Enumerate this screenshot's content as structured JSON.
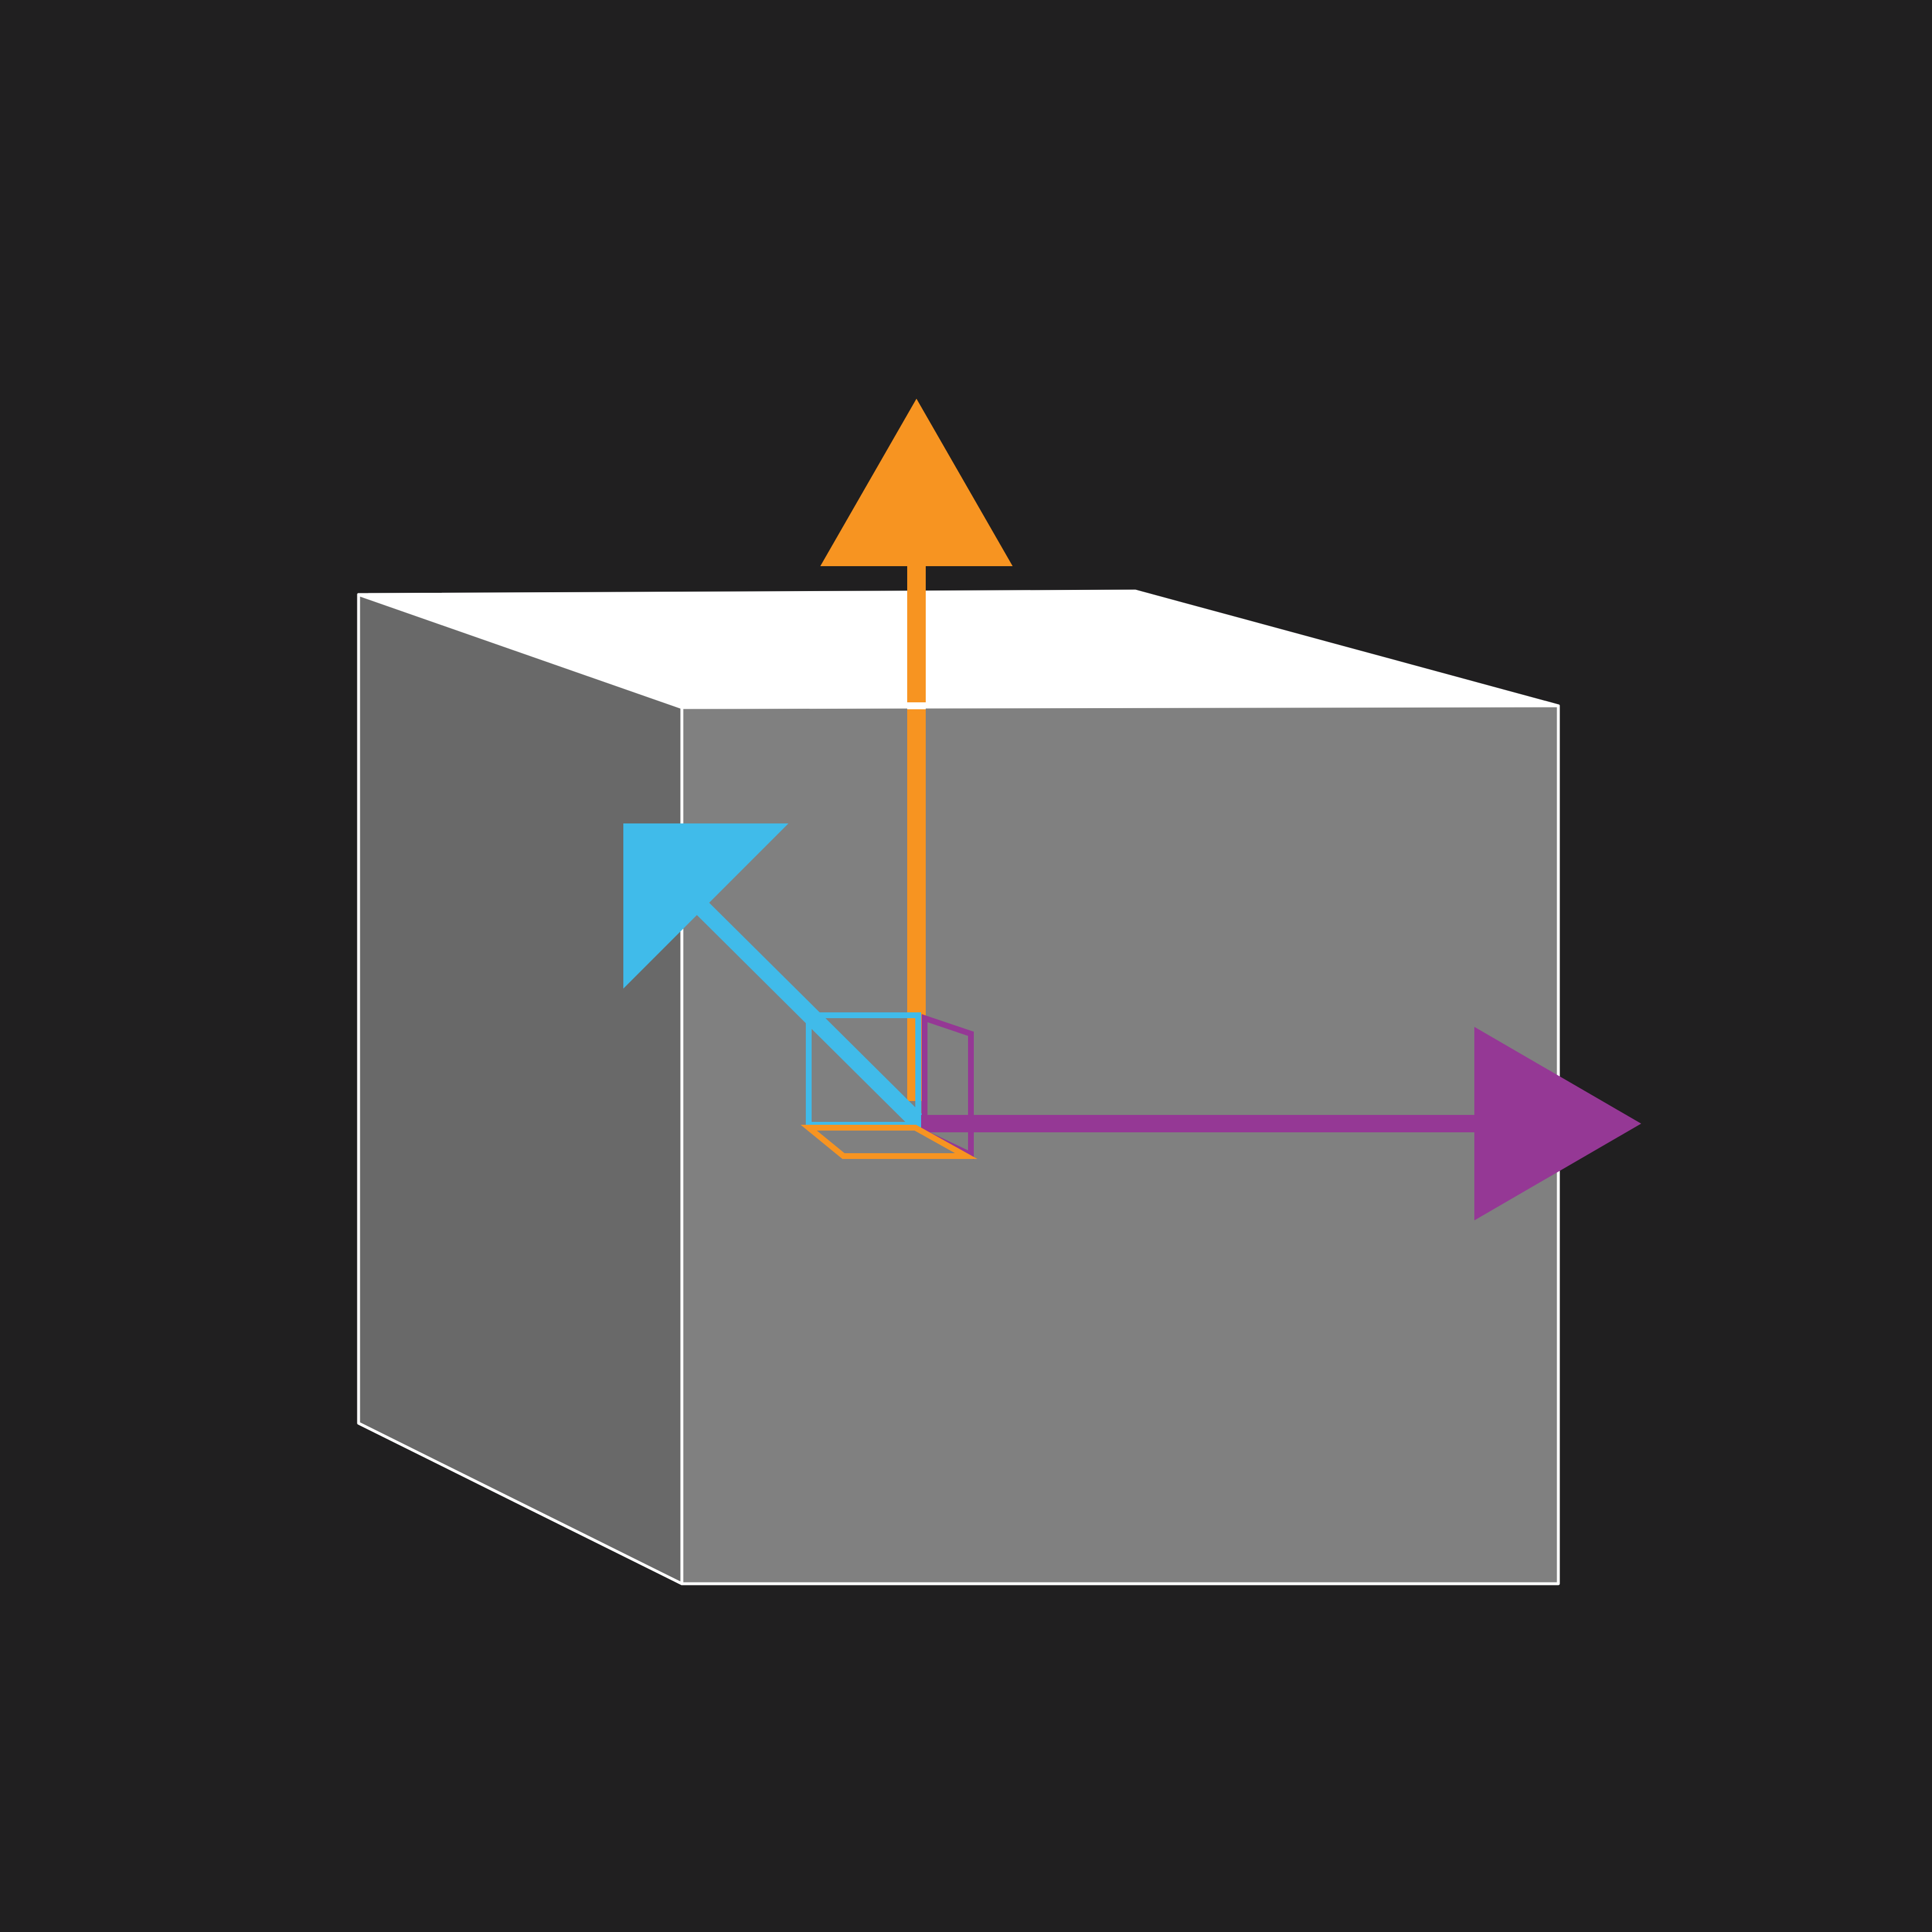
{
  "colors": {
    "background": "#201f20",
    "cube_top": "#ffffff",
    "cube_front": "#808080",
    "cube_side": "#696969",
    "cube_edge": "#ffffff",
    "axis_up": "#f79421",
    "axis_depth": "#40bbea",
    "axis_right": "#953895"
  },
  "axes": [
    {
      "id": "axis-up",
      "direction": "up",
      "color_key": "axis_up"
    },
    {
      "id": "axis-depth",
      "direction": "back-left",
      "color_key": "axis_depth"
    },
    {
      "id": "axis-right",
      "direction": "right",
      "color_key": "axis_right"
    }
  ]
}
